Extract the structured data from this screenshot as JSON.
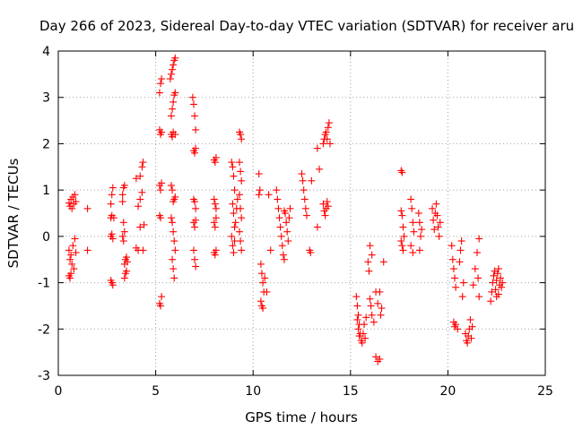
{
  "chart_data": {
    "type": "scatter",
    "title": "Day 266 of 2023, Sidereal Day-to-day VTEC variation (SDTVAR) for receiver aruc",
    "xlabel": "GPS time / hours",
    "ylabel": "SDTVAR / TECUs",
    "xlim": [
      0,
      25
    ],
    "ylim": [
      -3,
      4
    ],
    "xticks": [
      "0",
      "5",
      "10",
      "15",
      "20",
      "25"
    ],
    "yticks": [
      "-3",
      "-2",
      "-1",
      "0",
      "1",
      "2",
      "3",
      "4"
    ],
    "grid": true,
    "marker": "+",
    "color": "#ff0000",
    "series": [
      {
        "name": "SDTVAR",
        "points": [
          [
            0.55,
            0.72
          ],
          [
            0.6,
            0.65
          ],
          [
            0.65,
            0.8
          ],
          [
            0.7,
            0.6
          ],
          [
            0.75,
            0.85
          ],
          [
            0.8,
            0.7
          ],
          [
            0.85,
            0.9
          ],
          [
            0.9,
            0.75
          ],
          [
            0.55,
            -0.3
          ],
          [
            0.6,
            -0.5
          ],
          [
            0.65,
            -0.4
          ],
          [
            0.7,
            -0.6
          ],
          [
            0.75,
            -0.2
          ],
          [
            0.8,
            -0.7
          ],
          [
            0.85,
            -0.05
          ],
          [
            0.9,
            -0.35
          ],
          [
            0.55,
            -0.85
          ],
          [
            0.6,
            -0.9
          ],
          [
            0.65,
            -0.8
          ],
          [
            1.5,
            0.6
          ],
          [
            1.5,
            -0.3
          ],
          [
            2.7,
            -0.95
          ],
          [
            2.75,
            -1.0
          ],
          [
            2.8,
            -1.05
          ],
          [
            2.7,
            0.0
          ],
          [
            2.75,
            0.05
          ],
          [
            2.8,
            -0.05
          ],
          [
            2.7,
            0.4
          ],
          [
            2.75,
            0.45
          ],
          [
            2.7,
            0.7
          ],
          [
            2.75,
            0.9
          ],
          [
            2.8,
            1.05
          ],
          [
            2.85,
            0.4
          ],
          [
            3.3,
            0.9
          ],
          [
            3.35,
            1.05
          ],
          [
            3.4,
            1.1
          ],
          [
            3.3,
            0.75
          ],
          [
            3.35,
            0.3
          ],
          [
            3.4,
            0.1
          ],
          [
            3.3,
            0.0
          ],
          [
            3.35,
            -0.1
          ],
          [
            3.45,
            -0.5
          ],
          [
            3.4,
            -0.6
          ],
          [
            3.5,
            -0.75
          ],
          [
            3.45,
            -0.8
          ],
          [
            3.4,
            -0.9
          ],
          [
            3.5,
            -0.45
          ],
          [
            3.55,
            -0.55
          ],
          [
            4.0,
            1.25
          ],
          [
            4.1,
            0.65
          ],
          [
            4.2,
            0.2
          ],
          [
            4.0,
            -0.25
          ],
          [
            4.1,
            -0.3
          ],
          [
            4.2,
            1.3
          ],
          [
            4.3,
            1.5
          ],
          [
            4.35,
            1.6
          ],
          [
            4.3,
            0.95
          ],
          [
            4.2,
            0.8
          ],
          [
            4.4,
            0.25
          ],
          [
            4.35,
            -0.3
          ],
          [
            5.2,
            3.1
          ],
          [
            5.25,
            3.3
          ],
          [
            5.3,
            3.4
          ],
          [
            5.2,
            2.3
          ],
          [
            5.25,
            2.2
          ],
          [
            5.3,
            2.25
          ],
          [
            5.2,
            1.1
          ],
          [
            5.25,
            1.0
          ],
          [
            5.3,
            1.15
          ],
          [
            5.2,
            0.45
          ],
          [
            5.25,
            0.4
          ],
          [
            5.2,
            -1.45
          ],
          [
            5.25,
            -1.5
          ],
          [
            5.3,
            -1.3
          ],
          [
            5.75,
            3.4
          ],
          [
            5.8,
            3.5
          ],
          [
            5.85,
            3.6
          ],
          [
            5.9,
            3.7
          ],
          [
            5.95,
            3.8
          ],
          [
            6.0,
            3.85
          ],
          [
            5.8,
            2.6
          ],
          [
            5.85,
            2.75
          ],
          [
            5.9,
            2.9
          ],
          [
            5.95,
            3.05
          ],
          [
            6.0,
            3.1
          ],
          [
            5.8,
            2.2
          ],
          [
            5.85,
            2.15
          ],
          [
            5.9,
            2.25
          ],
          [
            6.0,
            2.2
          ],
          [
            5.8,
            1.1
          ],
          [
            5.85,
            1.0
          ],
          [
            5.9,
            0.75
          ],
          [
            5.95,
            0.8
          ],
          [
            6.0,
            0.85
          ],
          [
            5.8,
            0.4
          ],
          [
            5.85,
            0.3
          ],
          [
            5.9,
            0.1
          ],
          [
            5.95,
            -0.1
          ],
          [
            6.0,
            -0.3
          ],
          [
            5.85,
            -0.5
          ],
          [
            5.9,
            -0.7
          ],
          [
            5.95,
            -0.9
          ],
          [
            6.9,
            3.0
          ],
          [
            6.95,
            2.85
          ],
          [
            7.0,
            2.6
          ],
          [
            7.05,
            2.3
          ],
          [
            6.95,
            1.85
          ],
          [
            7.0,
            1.8
          ],
          [
            7.05,
            1.9
          ],
          [
            6.95,
            0.8
          ],
          [
            7.0,
            0.75
          ],
          [
            7.05,
            0.6
          ],
          [
            6.95,
            0.3
          ],
          [
            7.0,
            0.2
          ],
          [
            7.05,
            0.35
          ],
          [
            6.95,
            -0.3
          ],
          [
            7.0,
            -0.5
          ],
          [
            7.05,
            -0.65
          ],
          [
            8.0,
            1.65
          ],
          [
            8.05,
            1.6
          ],
          [
            8.1,
            1.7
          ],
          [
            8.0,
            0.8
          ],
          [
            8.05,
            0.7
          ],
          [
            8.1,
            0.6
          ],
          [
            8.0,
            0.3
          ],
          [
            8.05,
            0.2
          ],
          [
            8.1,
            0.4
          ],
          [
            8.0,
            -0.35
          ],
          [
            8.05,
            -0.4
          ],
          [
            8.1,
            -0.3
          ],
          [
            8.9,
            1.6
          ],
          [
            8.95,
            1.5
          ],
          [
            9.0,
            1.3
          ],
          [
            9.05,
            1.0
          ],
          [
            8.95,
            0.7
          ],
          [
            9.0,
            0.5
          ],
          [
            9.05,
            0.2
          ],
          [
            8.9,
            0.0
          ],
          [
            8.95,
            -0.2
          ],
          [
            9.0,
            -0.35
          ],
          [
            9.05,
            -0.1
          ],
          [
            9.1,
            0.3
          ],
          [
            9.15,
            0.6
          ],
          [
            9.2,
            0.8
          ],
          [
            9.3,
            2.25
          ],
          [
            9.35,
            2.2
          ],
          [
            9.4,
            2.1
          ],
          [
            9.3,
            1.6
          ],
          [
            9.35,
            1.4
          ],
          [
            9.4,
            1.2
          ],
          [
            9.3,
            0.9
          ],
          [
            9.35,
            0.6
          ],
          [
            9.4,
            0.4
          ],
          [
            9.3,
            0.1
          ],
          [
            9.35,
            -0.1
          ],
          [
            9.4,
            -0.3
          ],
          [
            10.3,
            1.35
          ],
          [
            10.35,
            1.0
          ],
          [
            10.3,
            0.9
          ],
          [
            10.4,
            -0.6
          ],
          [
            10.45,
            -0.8
          ],
          [
            10.5,
            -1.0
          ],
          [
            10.55,
            -1.2
          ],
          [
            10.4,
            -1.4
          ],
          [
            10.45,
            -1.5
          ],
          [
            10.5,
            -1.55
          ],
          [
            10.6,
            -0.9
          ],
          [
            10.7,
            -1.2
          ],
          [
            10.8,
            0.9
          ],
          [
            10.9,
            -0.3
          ],
          [
            11.2,
            1.0
          ],
          [
            11.25,
            0.8
          ],
          [
            11.3,
            0.6
          ],
          [
            11.35,
            0.4
          ],
          [
            11.4,
            0.2
          ],
          [
            11.45,
            0.0
          ],
          [
            11.5,
            -0.2
          ],
          [
            11.55,
            -0.4
          ],
          [
            11.6,
            -0.5
          ],
          [
            11.65,
            0.5
          ],
          [
            11.7,
            0.3
          ],
          [
            11.75,
            0.1
          ],
          [
            11.8,
            -0.1
          ],
          [
            11.85,
            0.4
          ],
          [
            11.9,
            0.6
          ],
          [
            11.6,
            0.55
          ],
          [
            12.5,
            1.35
          ],
          [
            12.55,
            1.2
          ],
          [
            12.6,
            1.0
          ],
          [
            12.65,
            0.8
          ],
          [
            12.7,
            0.6
          ],
          [
            12.75,
            0.45
          ],
          [
            12.9,
            -0.3
          ],
          [
            12.95,
            -0.35
          ],
          [
            13.0,
            1.2
          ],
          [
            13.3,
            0.2
          ],
          [
            13.3,
            1.9
          ],
          [
            13.4,
            1.45
          ],
          [
            13.6,
            2.0
          ],
          [
            13.65,
            2.1
          ],
          [
            13.7,
            2.2
          ],
          [
            13.75,
            2.25
          ],
          [
            13.8,
            2.1
          ],
          [
            13.85,
            2.35
          ],
          [
            13.9,
            2.45
          ],
          [
            13.95,
            2.0
          ],
          [
            13.6,
            0.7
          ],
          [
            13.65,
            0.55
          ],
          [
            13.7,
            0.45
          ],
          [
            13.75,
            0.6
          ],
          [
            13.8,
            0.75
          ],
          [
            13.85,
            0.65
          ],
          [
            15.3,
            -1.3
          ],
          [
            15.35,
            -1.5
          ],
          [
            15.4,
            -1.7
          ],
          [
            15.45,
            -1.9
          ],
          [
            15.5,
            -2.1
          ],
          [
            15.55,
            -2.25
          ],
          [
            15.6,
            -2.3
          ],
          [
            15.65,
            -2.1
          ],
          [
            15.7,
            -1.9
          ],
          [
            15.75,
            -2.2
          ],
          [
            15.35,
            -1.8
          ],
          [
            15.4,
            -2.0
          ],
          [
            15.45,
            -2.15
          ],
          [
            15.8,
            -1.75
          ],
          [
            15.9,
            -0.55
          ],
          [
            15.95,
            -0.75
          ],
          [
            16.0,
            -1.35
          ],
          [
            16.05,
            -1.5
          ],
          [
            16.1,
            -1.7
          ],
          [
            16.2,
            -1.85
          ],
          [
            16.3,
            -1.2
          ],
          [
            16.4,
            -1.45
          ],
          [
            16.5,
            -1.2
          ],
          [
            16.55,
            -1.7
          ],
          [
            16.6,
            -1.55
          ],
          [
            16.3,
            -2.6
          ],
          [
            16.4,
            -2.7
          ],
          [
            16.5,
            -2.65
          ],
          [
            16.0,
            -0.2
          ],
          [
            16.1,
            -0.4
          ],
          [
            16.7,
            -0.55
          ],
          [
            17.6,
            1.42
          ],
          [
            17.65,
            1.38
          ],
          [
            17.6,
            0.55
          ],
          [
            17.65,
            0.45
          ],
          [
            17.7,
            0.2
          ],
          [
            17.75,
            0.0
          ],
          [
            17.6,
            -0.1
          ],
          [
            17.65,
            -0.2
          ],
          [
            17.7,
            -0.3
          ],
          [
            18.1,
            0.8
          ],
          [
            18.15,
            0.6
          ],
          [
            18.2,
            0.3
          ],
          [
            18.25,
            0.1
          ],
          [
            18.1,
            -0.2
          ],
          [
            18.2,
            -0.35
          ],
          [
            18.5,
            0.5
          ],
          [
            18.55,
            0.3
          ],
          [
            18.6,
            0.0
          ],
          [
            18.55,
            -0.3
          ],
          [
            18.65,
            0.15
          ],
          [
            19.2,
            0.6
          ],
          [
            19.25,
            0.35
          ],
          [
            19.3,
            0.15
          ],
          [
            19.35,
            0.5
          ],
          [
            19.4,
            0.7
          ],
          [
            19.45,
            0.45
          ],
          [
            19.5,
            0.2
          ],
          [
            19.55,
            0.0
          ],
          [
            19.6,
            0.3
          ],
          [
            20.2,
            -0.2
          ],
          [
            20.25,
            -0.5
          ],
          [
            20.3,
            -0.7
          ],
          [
            20.35,
            -0.9
          ],
          [
            20.4,
            -1.1
          ],
          [
            20.3,
            -1.85
          ],
          [
            20.35,
            -1.95
          ],
          [
            20.4,
            -1.9
          ],
          [
            20.5,
            -2.0
          ],
          [
            20.6,
            -0.55
          ],
          [
            20.65,
            -0.3
          ],
          [
            20.7,
            -0.1
          ],
          [
            20.75,
            -1.3
          ],
          [
            20.8,
            -1.0
          ],
          [
            20.9,
            -2.1
          ],
          [
            20.95,
            -2.25
          ],
          [
            21.0,
            -2.3
          ],
          [
            21.05,
            -2.15
          ],
          [
            21.1,
            -2.0
          ],
          [
            21.15,
            -1.8
          ],
          [
            21.2,
            -2.2
          ],
          [
            21.25,
            -1.95
          ],
          [
            21.3,
            -1.05
          ],
          [
            21.4,
            -0.7
          ],
          [
            21.5,
            -0.35
          ],
          [
            21.6,
            -0.05
          ],
          [
            21.55,
            -0.9
          ],
          [
            21.6,
            -1.3
          ],
          [
            22.2,
            -1.4
          ],
          [
            22.25,
            -1.2
          ],
          [
            22.3,
            -1.0
          ],
          [
            22.35,
            -0.85
          ],
          [
            22.4,
            -0.75
          ],
          [
            22.45,
            -1.15
          ],
          [
            22.5,
            -0.95
          ],
          [
            22.55,
            -0.8
          ],
          [
            22.6,
            -1.25
          ],
          [
            22.65,
            -1.05
          ],
          [
            22.7,
            -0.9
          ],
          [
            22.75,
            -1.1
          ],
          [
            22.8,
            -1.0
          ],
          [
            22.5,
            -1.3
          ],
          [
            22.6,
            -0.7
          ]
        ]
      }
    ]
  }
}
